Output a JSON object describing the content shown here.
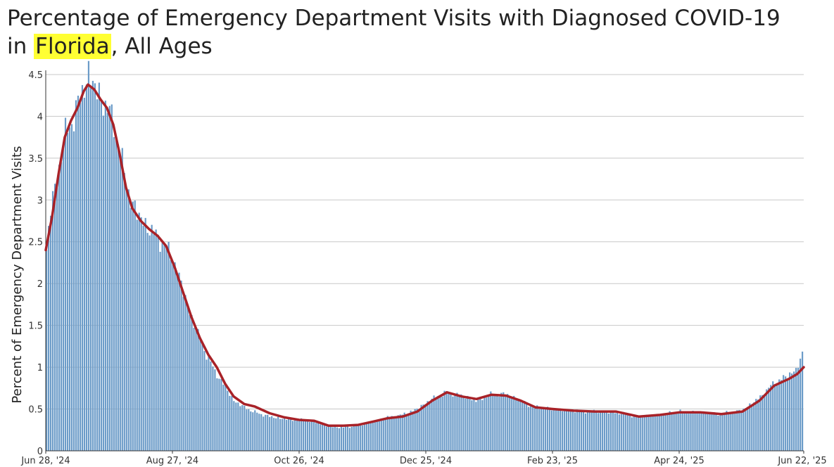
{
  "title": {
    "line1": "Percentage of Emergency Department Visits with Diagnosed COVID-19",
    "line2_prefix": "in ",
    "line2_highlight": "Florida",
    "line2_suffix": ", All Ages"
  },
  "colors": {
    "bars": "#6b9bc8",
    "average_line": "#a82228",
    "highlight": "#ffff33",
    "gridlines": "#c8c8c8"
  },
  "chart_data": {
    "type": "bar",
    "title": "Percentage of Emergency Department Visits with Diagnosed COVID-19 in Florida, All Ages",
    "xlabel": "",
    "ylabel": "Percent of Emergency Department Visits",
    "x_range": [
      "2024-06-28",
      "2025-06-22"
    ],
    "ylim": [
      0,
      4.55
    ],
    "yticks": [
      0,
      0.5,
      1,
      1.5,
      2,
      2.5,
      3,
      3.5,
      4,
      4.5
    ],
    "ytick_labels": [
      "0",
      "0.5",
      "1",
      "1.5",
      "2",
      "2.5",
      "3",
      "3.5",
      "4",
      "4.5"
    ],
    "xticks": [
      "2024-06-28",
      "2024-08-27",
      "2024-10-26",
      "2024-12-25",
      "2025-02-23",
      "2025-04-24",
      "2025-06-22"
    ],
    "xtick_labels": [
      "Jun 28, '24",
      "Aug 27, '24",
      "Oct 26, '24",
      "Dec 25, '24",
      "Feb 23, '25",
      "Apr 24, '25",
      "Jun 22, '25"
    ],
    "grid": true,
    "series": [
      {
        "kind": "daily_bars",
        "anchors": [
          [
            "2024-06-28",
            2.4
          ],
          [
            "2024-06-30",
            2.9
          ],
          [
            "2024-07-03",
            3.25
          ],
          [
            "2024-07-06",
            3.7
          ],
          [
            "2024-07-09",
            3.9
          ],
          [
            "2024-07-12",
            4.05
          ],
          [
            "2024-07-15",
            4.3
          ],
          [
            "2024-07-18",
            4.5
          ],
          [
            "2024-07-21",
            4.35
          ],
          [
            "2024-07-24",
            4.2
          ],
          [
            "2024-07-27",
            4.1
          ],
          [
            "2024-07-30",
            3.9
          ],
          [
            "2024-08-01",
            3.7
          ],
          [
            "2024-08-04",
            3.3
          ],
          [
            "2024-08-07",
            3.0
          ],
          [
            "2024-08-10",
            2.85
          ],
          [
            "2024-08-14",
            2.7
          ],
          [
            "2024-08-18",
            2.6
          ],
          [
            "2024-08-22",
            2.5
          ],
          [
            "2024-08-27",
            2.3
          ],
          [
            "2024-08-31",
            2.0
          ],
          [
            "2024-09-04",
            1.65
          ],
          [
            "2024-09-08",
            1.4
          ],
          [
            "2024-09-12",
            1.15
          ],
          [
            "2024-09-16",
            0.95
          ],
          [
            "2024-09-20",
            0.8
          ],
          [
            "2024-09-25",
            0.6
          ],
          [
            "2024-09-30",
            0.52
          ],
          [
            "2024-10-05",
            0.46
          ],
          [
            "2024-10-12",
            0.41
          ],
          [
            "2024-10-19",
            0.38
          ],
          [
            "2024-10-26",
            0.37
          ],
          [
            "2024-11-02",
            0.35
          ],
          [
            "2024-11-09",
            0.29
          ],
          [
            "2024-11-16",
            0.28
          ],
          [
            "2024-11-23",
            0.3
          ],
          [
            "2024-11-30",
            0.35
          ],
          [
            "2024-12-07",
            0.4
          ],
          [
            "2024-12-14",
            0.43
          ],
          [
            "2024-12-21",
            0.5
          ],
          [
            "2024-12-28",
            0.62
          ],
          [
            "2025-01-04",
            0.7
          ],
          [
            "2025-01-11",
            0.66
          ],
          [
            "2025-01-18",
            0.6
          ],
          [
            "2025-01-25",
            0.67
          ],
          [
            "2025-02-01",
            0.68
          ],
          [
            "2025-02-08",
            0.6
          ],
          [
            "2025-02-15",
            0.52
          ],
          [
            "2025-02-23",
            0.5
          ],
          [
            "2025-03-05",
            0.48
          ],
          [
            "2025-03-15",
            0.47
          ],
          [
            "2025-03-25",
            0.46
          ],
          [
            "2025-04-05",
            0.41
          ],
          [
            "2025-04-15",
            0.43
          ],
          [
            "2025-04-24",
            0.47
          ],
          [
            "2025-05-04",
            0.46
          ],
          [
            "2025-05-14",
            0.44
          ],
          [
            "2025-05-24",
            0.48
          ],
          [
            "2025-06-01",
            0.62
          ],
          [
            "2025-06-08",
            0.8
          ],
          [
            "2025-06-15",
            0.9
          ],
          [
            "2025-06-19",
            0.97
          ],
          [
            "2025-06-22",
            1.15
          ]
        ]
      },
      {
        "kind": "moving_average_line",
        "points": [
          [
            "2024-06-28",
            2.4
          ],
          [
            "2024-07-01",
            2.8
          ],
          [
            "2024-07-04",
            3.3
          ],
          [
            "2024-07-07",
            3.75
          ],
          [
            "2024-07-10",
            3.95
          ],
          [
            "2024-07-13",
            4.1
          ],
          [
            "2024-07-16",
            4.3
          ],
          [
            "2024-07-18",
            4.38
          ],
          [
            "2024-07-21",
            4.32
          ],
          [
            "2024-07-24",
            4.2
          ],
          [
            "2024-07-27",
            4.1
          ],
          [
            "2024-07-30",
            3.9
          ],
          [
            "2024-08-02",
            3.55
          ],
          [
            "2024-08-05",
            3.15
          ],
          [
            "2024-08-08",
            2.9
          ],
          [
            "2024-08-12",
            2.75
          ],
          [
            "2024-08-16",
            2.65
          ],
          [
            "2024-08-20",
            2.57
          ],
          [
            "2024-08-24",
            2.45
          ],
          [
            "2024-08-28",
            2.2
          ],
          [
            "2024-09-01",
            1.9
          ],
          [
            "2024-09-05",
            1.6
          ],
          [
            "2024-09-09",
            1.35
          ],
          [
            "2024-09-13",
            1.15
          ],
          [
            "2024-09-17",
            1.0
          ],
          [
            "2024-09-21",
            0.8
          ],
          [
            "2024-09-25",
            0.65
          ],
          [
            "2024-09-30",
            0.56
          ],
          [
            "2024-10-05",
            0.53
          ],
          [
            "2024-10-12",
            0.45
          ],
          [
            "2024-10-19",
            0.4
          ],
          [
            "2024-10-26",
            0.37
          ],
          [
            "2024-11-02",
            0.36
          ],
          [
            "2024-11-09",
            0.3
          ],
          [
            "2024-11-16",
            0.3
          ],
          [
            "2024-11-23",
            0.31
          ],
          [
            "2024-11-30",
            0.35
          ],
          [
            "2024-12-07",
            0.39
          ],
          [
            "2024-12-14",
            0.41
          ],
          [
            "2024-12-21",
            0.47
          ],
          [
            "2024-12-28",
            0.6
          ],
          [
            "2025-01-04",
            0.7
          ],
          [
            "2025-01-11",
            0.65
          ],
          [
            "2025-01-18",
            0.62
          ],
          [
            "2025-01-25",
            0.67
          ],
          [
            "2025-02-01",
            0.66
          ],
          [
            "2025-02-08",
            0.6
          ],
          [
            "2025-02-15",
            0.52
          ],
          [
            "2025-02-23",
            0.5
          ],
          [
            "2025-03-05",
            0.48
          ],
          [
            "2025-03-15",
            0.47
          ],
          [
            "2025-03-25",
            0.47
          ],
          [
            "2025-04-05",
            0.41
          ],
          [
            "2025-04-15",
            0.43
          ],
          [
            "2025-04-24",
            0.46
          ],
          [
            "2025-05-04",
            0.46
          ],
          [
            "2025-05-14",
            0.44
          ],
          [
            "2025-05-24",
            0.47
          ],
          [
            "2025-06-01",
            0.6
          ],
          [
            "2025-06-08",
            0.78
          ],
          [
            "2025-06-15",
            0.86
          ],
          [
            "2025-06-19",
            0.92
          ],
          [
            "2025-06-22",
            1.0
          ]
        ]
      }
    ]
  }
}
